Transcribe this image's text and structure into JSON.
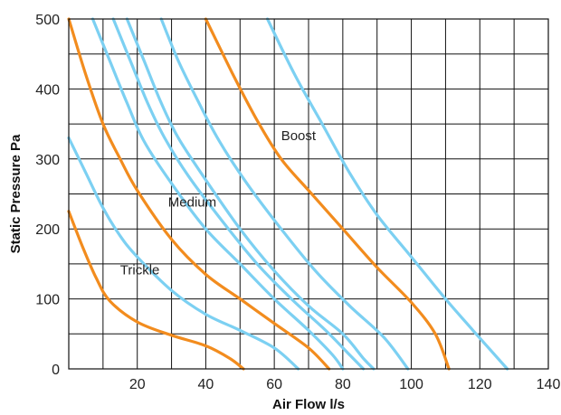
{
  "chart_data": {
    "type": "line",
    "xlabel": "Air Flow l/s",
    "ylabel": "Static Pressure Pa",
    "xlim": [
      0,
      140
    ],
    "ylim": [
      0,
      500
    ],
    "xticks": [
      20,
      40,
      60,
      80,
      100,
      120,
      140
    ],
    "yticks": [
      0,
      100,
      200,
      300,
      400,
      500
    ],
    "grid": true,
    "colors": {
      "fan_setting": "#F28C1E",
      "system": "#7CD0F2",
      "grid": "#111111"
    },
    "annotations": [
      {
        "text": "Trickle",
        "x": 15,
        "y": 135
      },
      {
        "text": "Medium",
        "x": 29,
        "y": 232
      },
      {
        "text": "Boost",
        "x": 62,
        "y": 327
      }
    ],
    "series": [
      {
        "name": "Trickle",
        "color": "#F28C1E",
        "points": [
          [
            0,
            225
          ],
          [
            4,
            175
          ],
          [
            8,
            130
          ],
          [
            12,
            97
          ],
          [
            20,
            67
          ],
          [
            30,
            48
          ],
          [
            40,
            33
          ],
          [
            47,
            15
          ],
          [
            51,
            0
          ]
        ]
      },
      {
        "name": "Medium",
        "color": "#F28C1E",
        "points": [
          [
            0,
            500
          ],
          [
            5,
            420
          ],
          [
            10,
            350
          ],
          [
            15,
            300
          ],
          [
            20,
            255
          ],
          [
            30,
            185
          ],
          [
            40,
            135
          ],
          [
            50,
            100
          ],
          [
            60,
            65
          ],
          [
            70,
            30
          ],
          [
            76,
            0
          ]
        ]
      },
      {
        "name": "Boost",
        "color": "#F28C1E",
        "points": [
          [
            40,
            500
          ],
          [
            48,
            420
          ],
          [
            55,
            355
          ],
          [
            62,
            300
          ],
          [
            70,
            255
          ],
          [
            80,
            200
          ],
          [
            90,
            145
          ],
          [
            100,
            95
          ],
          [
            107,
            50
          ],
          [
            111,
            0
          ]
        ]
      },
      {
        "color": "#7CD0F2",
        "points": [
          [
            0,
            330
          ],
          [
            5,
            280
          ],
          [
            10,
            230
          ],
          [
            15,
            190
          ],
          [
            20,
            160
          ],
          [
            30,
            112
          ],
          [
            40,
            78
          ],
          [
            50,
            55
          ],
          [
            60,
            30
          ],
          [
            67,
            0
          ]
        ]
      },
      {
        "color": "#7CD0F2",
        "points": [
          [
            7,
            500
          ],
          [
            12,
            440
          ],
          [
            17,
            380
          ],
          [
            22,
            325
          ],
          [
            30,
            265
          ],
          [
            40,
            200
          ],
          [
            50,
            150
          ],
          [
            60,
            100
          ],
          [
            70,
            55
          ],
          [
            77,
            20
          ],
          [
            80,
            0
          ]
        ]
      },
      {
        "color": "#7CD0F2",
        "points": [
          [
            13,
            500
          ],
          [
            18,
            440
          ],
          [
            23,
            380
          ],
          [
            28,
            330
          ],
          [
            35,
            275
          ],
          [
            45,
            210
          ],
          [
            55,
            150
          ],
          [
            65,
            100
          ],
          [
            75,
            55
          ],
          [
            82,
            20
          ],
          [
            86,
            0
          ]
        ]
      },
      {
        "color": "#7CD0F2",
        "points": [
          [
            17,
            500
          ],
          [
            22,
            440
          ],
          [
            27,
            380
          ],
          [
            32,
            330
          ],
          [
            40,
            270
          ],
          [
            50,
            200
          ],
          [
            60,
            140
          ],
          [
            70,
            90
          ],
          [
            80,
            50
          ],
          [
            86,
            15
          ],
          [
            89,
            0
          ]
        ]
      },
      {
        "color": "#7CD0F2",
        "points": [
          [
            27,
            500
          ],
          [
            32,
            440
          ],
          [
            38,
            380
          ],
          [
            44,
            325
          ],
          [
            52,
            265
          ],
          [
            62,
            200
          ],
          [
            72,
            140
          ],
          [
            82,
            90
          ],
          [
            92,
            45
          ],
          [
            99,
            0
          ]
        ]
      },
      {
        "color": "#7CD0F2",
        "points": [
          [
            58,
            500
          ],
          [
            66,
            420
          ],
          [
            74,
            350
          ],
          [
            82,
            280
          ],
          [
            90,
            220
          ],
          [
            100,
            160
          ],
          [
            110,
            100
          ],
          [
            118,
            55
          ],
          [
            128,
            0
          ]
        ]
      }
    ]
  }
}
